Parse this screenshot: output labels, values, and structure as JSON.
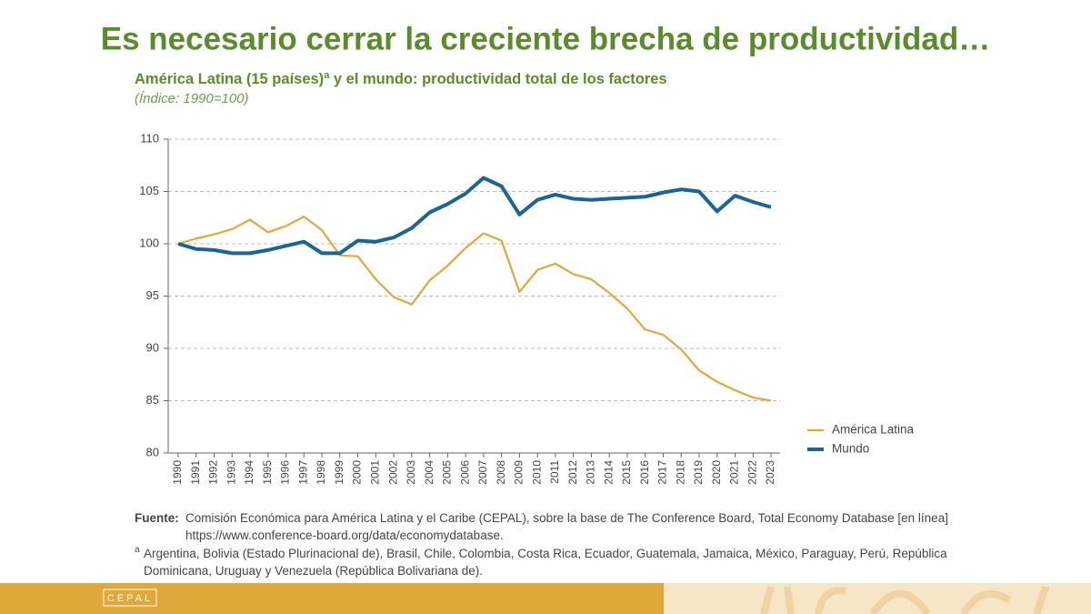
{
  "header": {
    "title": "Es necesario cerrar la creciente brecha de productividad…"
  },
  "chart_data": {
    "type": "line",
    "title": {
      "main": "América Latina (15 países)",
      "sup": "a",
      "rest": " y el mundo: productividad total de los factores"
    },
    "subtitle": "(Índice: 1990=100)",
    "categories": [
      "1990",
      "1991",
      "1992",
      "1993",
      "1994",
      "1995",
      "1996",
      "1997",
      "1998",
      "1999",
      "2000",
      "2001",
      "2002",
      "2003",
      "2004",
      "2005",
      "2006",
      "2007",
      "2008",
      "2009",
      "2010",
      "2011",
      "2012",
      "2013",
      "2014",
      "2015",
      "2016",
      "2017",
      "2018",
      "2019",
      "2020",
      "2021",
      "2022",
      "2023"
    ],
    "series": [
      {
        "name": "América Latina",
        "color": "#e0a83a",
        "values": [
          100,
          100.5,
          100.9,
          101.4,
          102.3,
          101.1,
          101.7,
          102.6,
          101.3,
          98.9,
          98.8,
          96.6,
          94.9,
          94.2,
          96.5,
          97.9,
          99.6,
          101.0,
          100.3,
          95.4,
          97.5,
          98.1,
          97.1,
          96.6,
          95.3,
          93.8,
          91.8,
          91.3,
          89.9,
          87.9,
          86.8,
          86.0,
          85.3,
          85.0
        ]
      },
      {
        "name": "Mundo",
        "color": "#1a6496",
        "values": [
          100,
          99.5,
          99.4,
          99.1,
          99.1,
          99.4,
          99.8,
          100.2,
          99.1,
          99.1,
          100.3,
          100.2,
          100.6,
          101.5,
          103.0,
          103.8,
          104.8,
          106.3,
          105.5,
          102.8,
          104.2,
          104.7,
          104.3,
          104.2,
          104.3,
          104.4,
          104.5,
          104.9,
          105.2,
          105.0,
          103.1,
          104.6,
          104.0,
          103.5
        ]
      }
    ],
    "ylim": [
      80,
      110
    ],
    "yticks": [
      80,
      85,
      90,
      95,
      100,
      105,
      110
    ],
    "grid": true,
    "legend": "lower right"
  },
  "footer": {
    "source_label": "Fuente:",
    "source": "Comisión Económica para América Latina y el Caribe (CEPAL), sobre la base de The Conference Board, Total Economy Database [en línea] https://www.conference-board.org/data/economydatabase.",
    "note_mark": "a",
    "note": "Argentina, Bolivia (Estado Plurinacional de), Brasil, Chile, Colombia, Costa Rica, Ecuador, Guatemala, Jamaica, México, Paraguay, Perú, República Dominicana, Uruguay y Venezuela (República Bolivariana de).",
    "logo": "CEPAL"
  }
}
